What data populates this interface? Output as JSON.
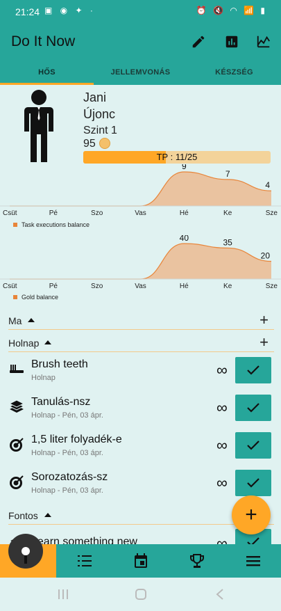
{
  "status": {
    "time": "21:24",
    "left_icons": "▣ ◉ ✦ ·",
    "right_icons": "⏰ 🔇 ◠ 📶 ▮"
  },
  "app": {
    "title": "Do It Now"
  },
  "tabs": [
    {
      "label": "HŐS"
    },
    {
      "label": "JELLEMVONÁS"
    },
    {
      "label": "KÉSZSÉG"
    }
  ],
  "hero": {
    "name": "Jani",
    "rank": "Újonc",
    "level": "Szint 1",
    "gold": "95",
    "tp_label": "TP : 11/25",
    "tp_fraction": 0.44
  },
  "chart_data": [
    {
      "type": "area",
      "categories": [
        "Csüt",
        "Pé",
        "Szo",
        "Vas",
        "Hé",
        "Ke",
        "Sze"
      ],
      "series": [
        {
          "name": "Task executions balance",
          "values": [
            0,
            0,
            0,
            0,
            9,
            7,
            4
          ]
        }
      ],
      "data_labels": [
        "",
        "",
        "",
        "",
        "9",
        "7",
        "4"
      ],
      "legend": "bottom-left",
      "color": "#e8853a"
    },
    {
      "type": "area",
      "categories": [
        "Csüt",
        "Pé",
        "Szo",
        "Vas",
        "Hé",
        "Ke",
        "Sze"
      ],
      "series": [
        {
          "name": "Gold balance",
          "values": [
            0,
            0,
            0,
            0,
            40,
            35,
            20
          ]
        }
      ],
      "data_labels": [
        "",
        "",
        "",
        "",
        "40",
        "35",
        "20"
      ],
      "legend": "bottom-left",
      "color": "#e8853a"
    }
  ],
  "sections": [
    {
      "label": "Ma"
    },
    {
      "label": "Holnap"
    },
    {
      "label": "Fontos"
    }
  ],
  "tasks": [
    {
      "name": "Brush teeth",
      "sub": "Holnap",
      "icon": "toothbrush-icon"
    },
    {
      "name": "Tanulás-nsz",
      "sub": "Holnap - Pén, 03 ápr.",
      "icon": "books-icon"
    },
    {
      "name": "1,5 liter folyadék-e",
      "sub": "Holnap - Pén, 03 ápr.",
      "icon": "target-icon"
    },
    {
      "name": "Sorozatozás-sz",
      "sub": "Holnap - Pén, 03 ápr.",
      "icon": "target-icon"
    },
    {
      "name": "Learn something new",
      "sub": "",
      "icon": "books-icon"
    }
  ],
  "symbols": {
    "infinity": "∞",
    "plus": "+"
  }
}
